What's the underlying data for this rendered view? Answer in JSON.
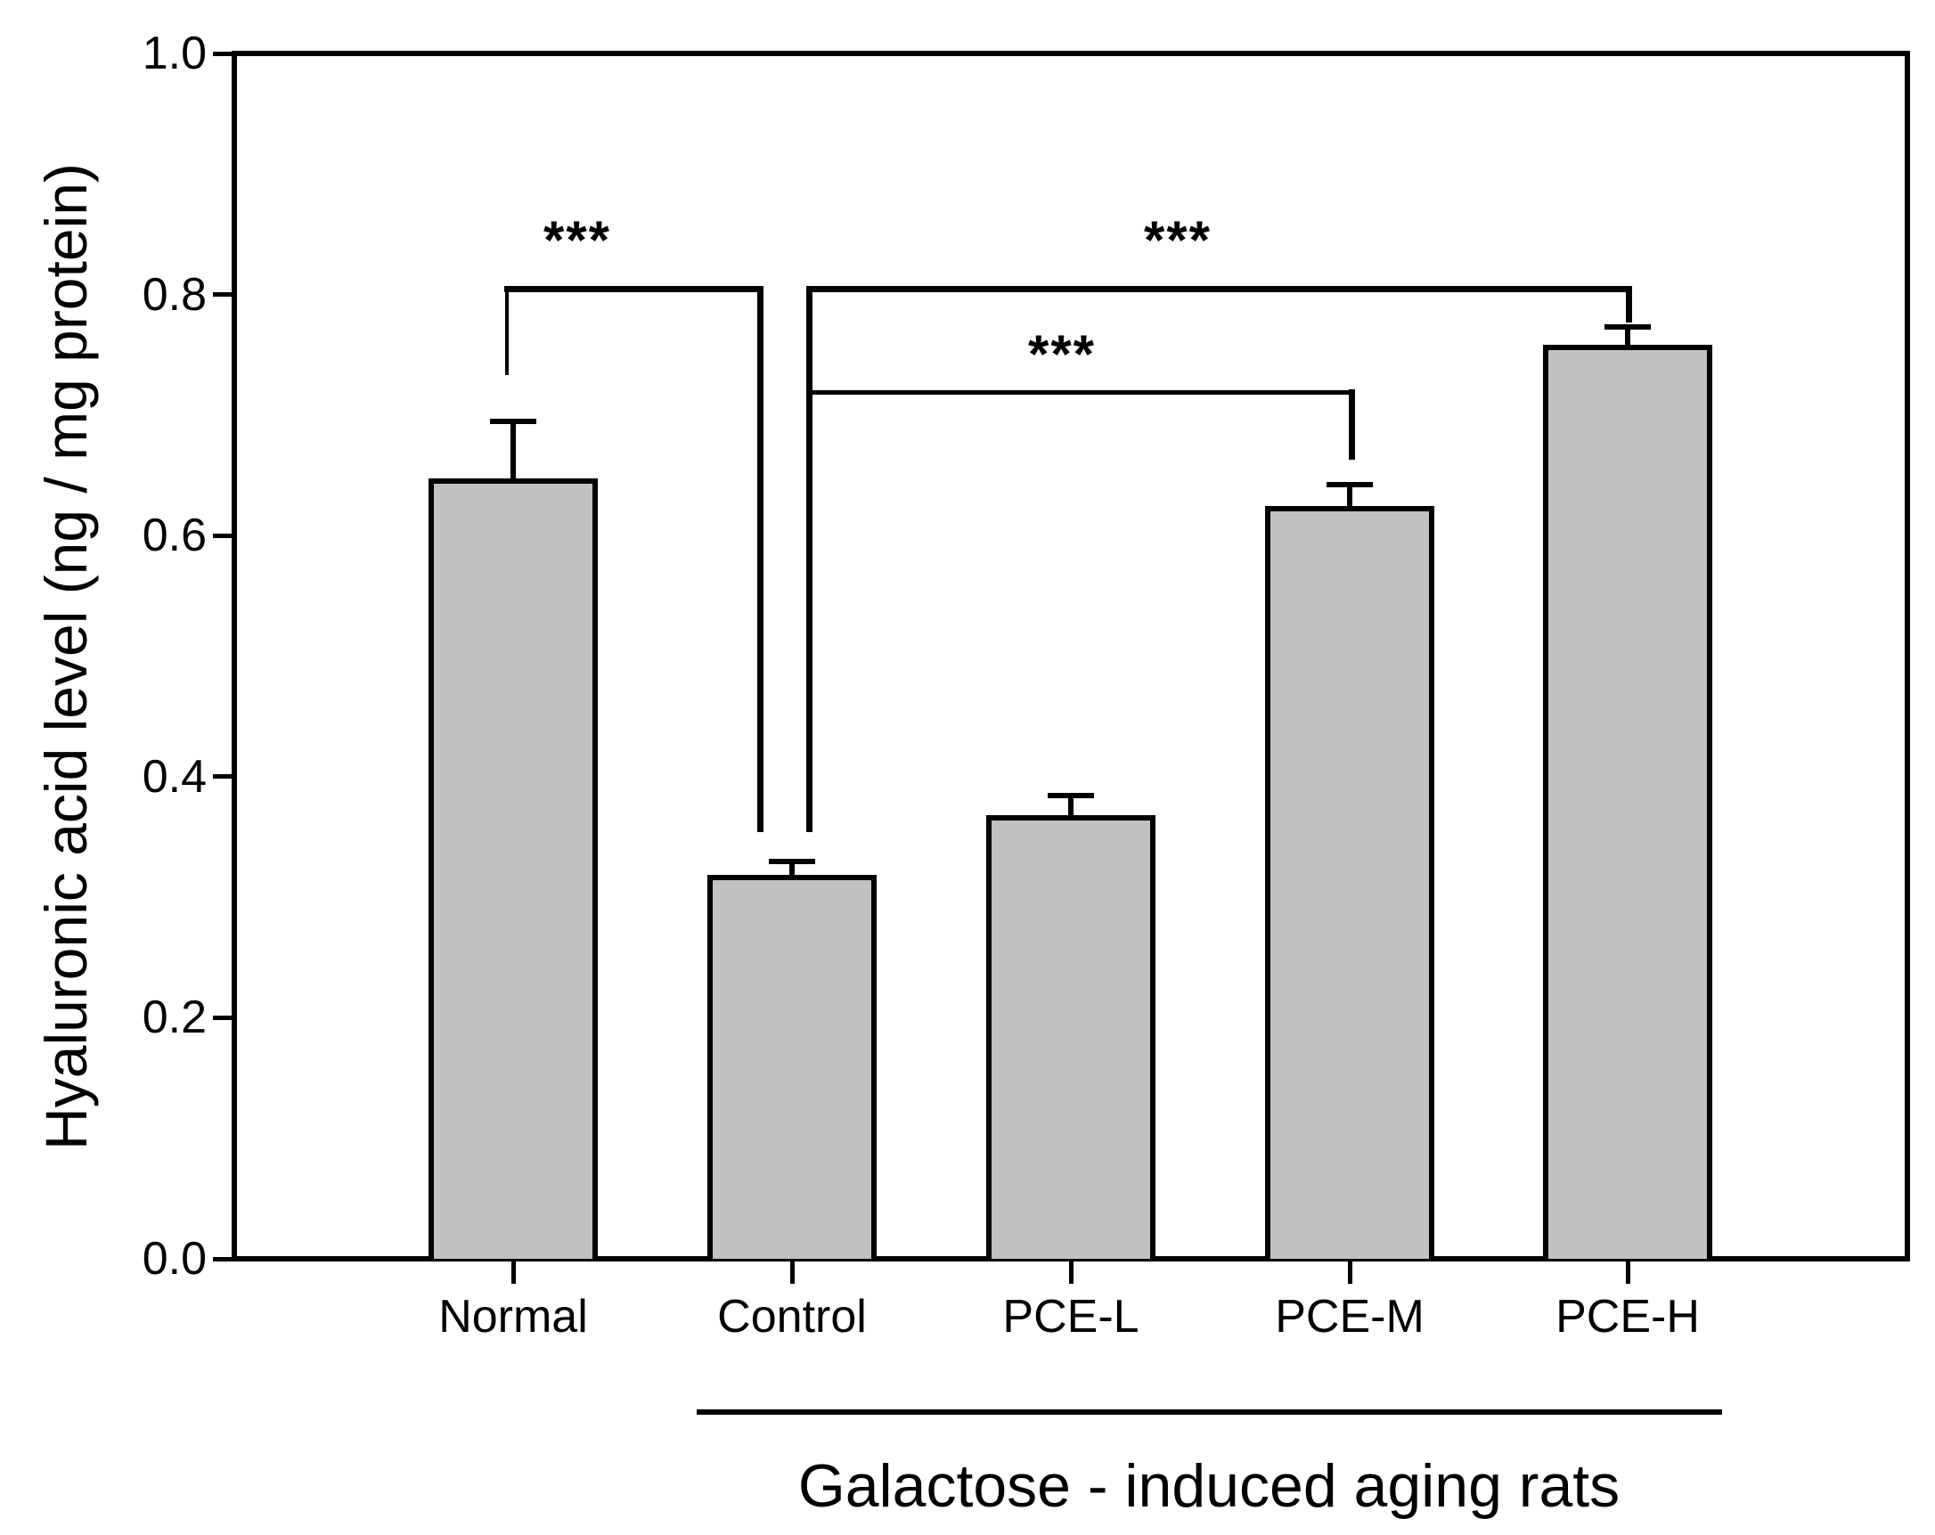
{
  "chart_data": {
    "type": "bar",
    "title": "",
    "xlabel": "",
    "ylabel": "Hyaluronic acid level (ng / mg protein)",
    "categories": [
      "Normal",
      "Control",
      "PCE-L",
      "PCE-M",
      "PCE-H"
    ],
    "values": [
      0.645,
      0.316,
      0.366,
      0.622,
      0.756
    ],
    "errors": [
      0.05,
      0.014,
      0.018,
      0.02,
      0.017
    ],
    "error_bar_style": "upper only, capped",
    "ylim": [
      0.0,
      1.0
    ],
    "yticks": [
      0.0,
      0.2,
      0.4,
      0.6,
      0.8,
      1.0
    ],
    "ytick_labels": [
      "0.0",
      "0.2",
      "0.4",
      "0.6",
      "0.8",
      "1.0"
    ],
    "grid": false,
    "legend": null,
    "bar_color": "#c1c1c1",
    "bar_border_color": "#000000",
    "significance": [
      {
        "between": [
          "Normal",
          "Control"
        ],
        "label": "***",
        "level": 0.805
      },
      {
        "between": [
          "Control",
          "PCE-M"
        ],
        "label": "***",
        "level": 0.719
      },
      {
        "between": [
          "Control",
          "PCE-H"
        ],
        "label": "***",
        "level": 0.805
      }
    ],
    "group_annotation": {
      "label": "Galactose - induced aging rats",
      "from_category": "Control",
      "to_category": "PCE-H"
    }
  }
}
